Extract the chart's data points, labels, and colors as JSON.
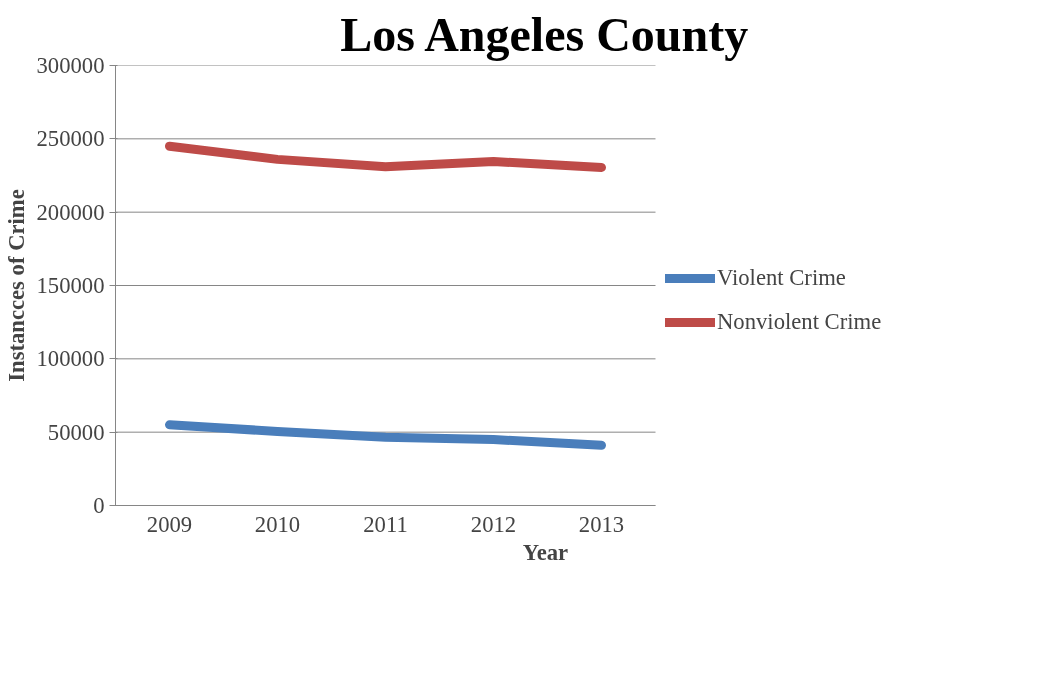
{
  "chart_data": {
    "type": "line",
    "title": "Los Angeles County",
    "xlabel": "Year",
    "ylabel": "Instancces of Crime",
    "categories": [
      "2009",
      "2010",
      "2011",
      "2012",
      "2013"
    ],
    "series": [
      {
        "name": "Violent Crime",
        "color": "#4a7ebb",
        "values": [
          55000,
          50500,
          46500,
          45000,
          41000
        ]
      },
      {
        "name": "Nonviolent Crime",
        "color": "#be4b48",
        "values": [
          245000,
          236000,
          231000,
          234500,
          230500
        ]
      }
    ],
    "ylim": [
      0,
      300000
    ],
    "yticks": [
      0,
      50000,
      100000,
      150000,
      200000,
      250000,
      300000
    ],
    "grid": "y",
    "legend": "right",
    "marker": "none",
    "line_style": "solid"
  }
}
